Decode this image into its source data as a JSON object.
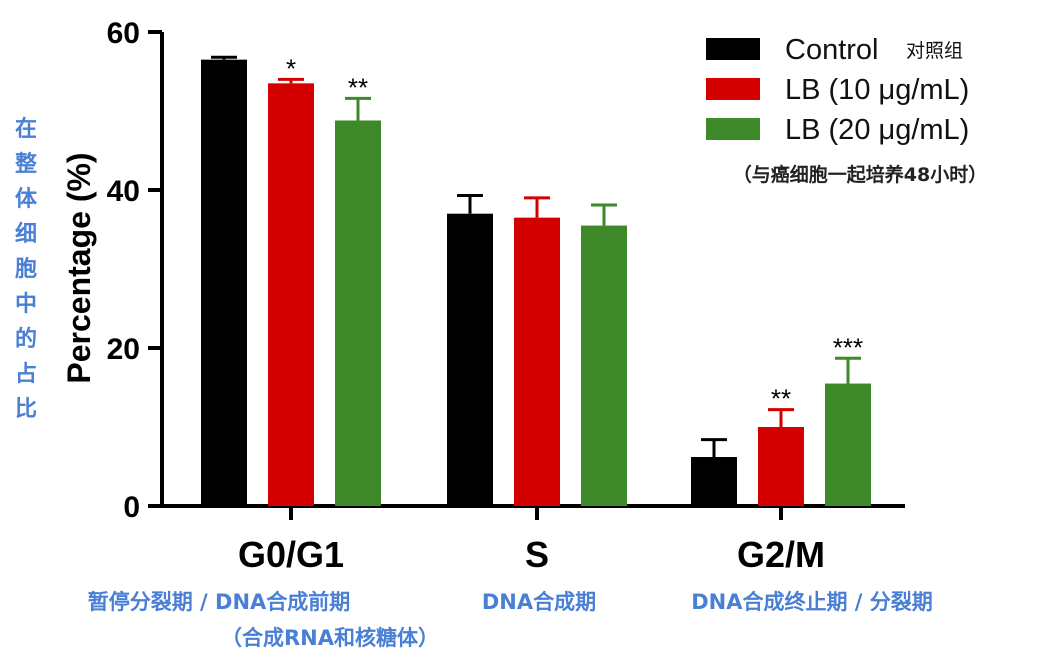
{
  "chart_data": {
    "type": "bar",
    "categories": [
      "G0/G1",
      "S",
      "G2/M"
    ],
    "series": [
      {
        "name": "Control",
        "name_cn": "对照组",
        "color": "#000000",
        "values": [
          56.5,
          37,
          6.2
        ],
        "errors": [
          0.3,
          2.3,
          2.2
        ],
        "sig": [
          "",
          "",
          ""
        ]
      },
      {
        "name": "LB (10 μg/mL)",
        "color": "#d40000",
        "values": [
          53.5,
          36.5,
          10
        ],
        "errors": [
          0.5,
          2.5,
          2.2
        ],
        "sig": [
          "*",
          "",
          "**"
        ]
      },
      {
        "name": "LB (20 μg/mL)",
        "color": "#3e8a2a",
        "values": [
          48.8,
          35.5,
          15.5
        ],
        "errors": [
          2.8,
          2.6,
          3.2
        ],
        "sig": [
          "**",
          "",
          "***"
        ]
      }
    ],
    "ylabel": "Percentage (%)",
    "ylim": [
      0,
      60
    ],
    "yticks": [
      0,
      20,
      40,
      60
    ],
    "grid": false,
    "legend_position": "top-right"
  },
  "annotations": {
    "ylabel_cn": "在整体细胞中的占比",
    "legend_note": "（与癌细胞一起培养48小时）",
    "category_cn": [
      [
        "暂停分裂期 / DNA合成前期",
        "（合成RNA和核糖体）"
      ],
      [
        "DNA合成期"
      ],
      [
        "DNA合成终止期 / 分裂期"
      ]
    ],
    "accent_color": "#4a7fd6"
  }
}
